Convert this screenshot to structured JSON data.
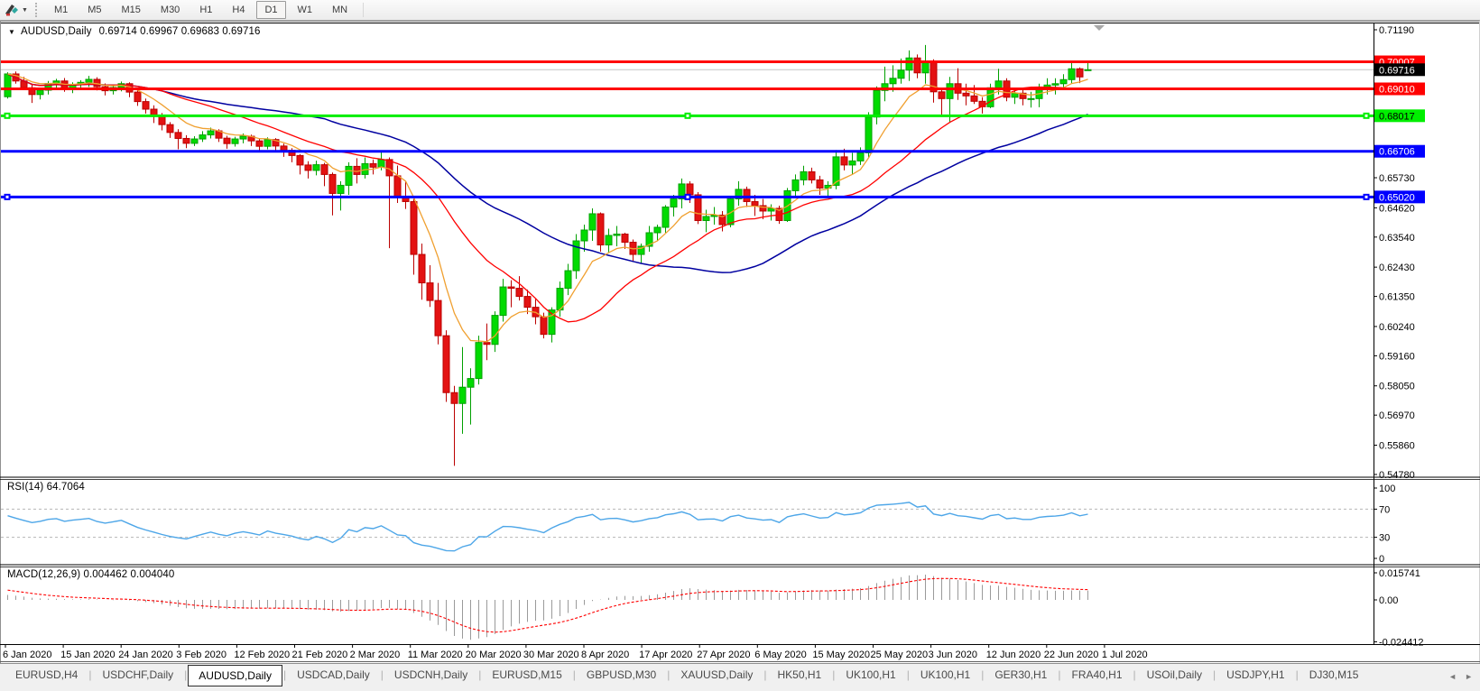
{
  "toolbar": {
    "chart_style_icon": "chart-style-icon",
    "timeframes": [
      "M1",
      "M5",
      "M15",
      "M30",
      "H1",
      "H4",
      "D1",
      "W1",
      "MN"
    ],
    "active_timeframe": "D1"
  },
  "chart_header": {
    "dropdown_glyph": "▼",
    "title": "AUDUSD,Daily",
    "ohlc": "0.69714 0.69967 0.69683 0.69716"
  },
  "price_axis": {
    "ticks": [
      "0.71190",
      "0.67920",
      "0.65730",
      "0.64620",
      "0.63540",
      "0.62430",
      "0.61350",
      "0.60240",
      "0.59160",
      "0.58050",
      "0.56970",
      "0.55860",
      "0.54780"
    ],
    "badges": [
      {
        "text": "0.70007",
        "bg": "#ff0000",
        "fg": "#ffffff"
      },
      {
        "text": "0.69716",
        "bg": "#000000",
        "fg": "#ffffff"
      },
      {
        "text": "0.69010",
        "bg": "#ff0000",
        "fg": "#ffffff"
      },
      {
        "text": "0.68017",
        "bg": "#00ee00",
        "fg": "#000000"
      },
      {
        "text": "0.66706",
        "bg": "#0000ff",
        "fg": "#ffffff"
      },
      {
        "text": "0.65020",
        "bg": "#0000ff",
        "fg": "#ffffff"
      }
    ]
  },
  "rsi": {
    "label": "RSI(14) 64.7064",
    "period": 14,
    "value": 64.7064,
    "axis_labels": [
      "100",
      "70",
      "30",
      "0"
    ],
    "overbought": 70,
    "oversold": 30,
    "line_color": "#4da6e8"
  },
  "macd": {
    "label": "MACD(12,26,9) 0.004462 0.004040",
    "params": "12,26,9",
    "macd_value": 0.004462,
    "signal_value": 0.00404,
    "axis_labels": [
      "0.015741",
      "0.00",
      "-0.024412"
    ],
    "histogram_color": "#9a9a9a",
    "signal_color": "#ff0000"
  },
  "date_axis": {
    "labels": [
      "6 Jan 2020",
      "15 Jan 2020",
      "24 Jan 2020",
      "3 Feb 2020",
      "12 Feb 2020",
      "21 Feb 2020",
      "2 Mar 2020",
      "11 Mar 2020",
      "20 Mar 2020",
      "30 Mar 2020",
      "8 Apr 2020",
      "17 Apr 2020",
      "27 Apr 2020",
      "6 May 2020",
      "15 May 2020",
      "25 May 2020",
      "3 Jun 2020",
      "12 Jun 2020",
      "22 Jun 2020",
      "1 Jul 2020"
    ]
  },
  "tabbar": {
    "items": [
      "EURUSD,H4",
      "USDCHF,Daily",
      "AUDUSD,Daily",
      "USDCAD,Daily",
      "USDCNH,Daily",
      "EURUSD,M15",
      "GBPUSD,M30",
      "XAUUSD,Daily",
      "HK50,H1",
      "UK100,H1",
      "UK100,H1",
      "GER30,H1",
      "FRA40,H1",
      "USOil,Daily",
      "USDJPY,H1",
      "DJ30,M15"
    ],
    "active": "AUDUSD,Daily",
    "left_arrow": "◄",
    "right_arrow": "►"
  },
  "colors": {
    "bull_fill": "#00db00",
    "bull_stroke": "#00a000",
    "bear_fill": "#e31212",
    "bear_stroke": "#bb0000",
    "ma_fast": "#f0a030",
    "ma_medium": "#ff0000",
    "ma_slow": "#0000a0",
    "current_price_line": "#c4c4c4",
    "shift_marker": "#a8a8a8"
  },
  "chart_data": {
    "type": "candlestick",
    "title": "AUDUSD,Daily",
    "open": 0.69714,
    "high": 0.69967,
    "low": 0.69683,
    "close": 0.69716,
    "y_ticks": [
      0.7119,
      0.7011,
      0.69,
      0.6792,
      0.6681,
      0.6573,
      0.6462,
      0.6354,
      0.6243,
      0.6135,
      0.6024,
      0.5916,
      0.5805,
      0.5697,
      0.5586,
      0.5478
    ],
    "horizontal_lines": [
      {
        "price": 0.70007,
        "color": "#ff0000",
        "width": 3,
        "selected": false
      },
      {
        "price": 0.6901,
        "color": "#ff0000",
        "width": 3,
        "selected": false
      },
      {
        "price": 0.68017,
        "color": "#00ee00",
        "width": 3,
        "selected": true
      },
      {
        "price": 0.66706,
        "color": "#0000ff",
        "width": 3,
        "selected": false
      },
      {
        "price": 0.6502,
        "color": "#0000ff",
        "width": 3,
        "selected": true
      }
    ],
    "current_price": 0.69716,
    "overlays": [
      {
        "name": "ma-fast-orange",
        "color": "#f0a030"
      },
      {
        "name": "ma-medium-red",
        "color": "#ff0000"
      },
      {
        "name": "ma-slow-navy",
        "color": "#0000a0"
      }
    ],
    "subcharts": [
      {
        "name": "RSI",
        "period": 14,
        "last": 64.7064,
        "range": [
          0,
          100
        ],
        "levels": [
          70,
          30
        ]
      },
      {
        "name": "MACD",
        "params": [
          12,
          26,
          9
        ],
        "last": [
          0.004462,
          0.00404
        ],
        "axis": [
          0.015741,
          0.0,
          -0.024412
        ]
      }
    ],
    "candles": [
      [
        0.6872,
        0.6962,
        0.6865,
        0.6956
      ],
      [
        0.6956,
        0.6965,
        0.692,
        0.693
      ],
      [
        0.693,
        0.6945,
        0.6898,
        0.6905
      ],
      [
        0.6905,
        0.6917,
        0.6849,
        0.688
      ],
      [
        0.688,
        0.6905,
        0.6862,
        0.6896
      ],
      [
        0.6896,
        0.693,
        0.688,
        0.6921
      ],
      [
        0.6921,
        0.6938,
        0.6902,
        0.693
      ],
      [
        0.693,
        0.6941,
        0.689,
        0.6903
      ],
      [
        0.6903,
        0.6925,
        0.6885,
        0.6916
      ],
      [
        0.6916,
        0.6933,
        0.6896,
        0.6925
      ],
      [
        0.6925,
        0.6949,
        0.6908,
        0.6936
      ],
      [
        0.6936,
        0.6944,
        0.6895,
        0.6909
      ],
      [
        0.6909,
        0.6921,
        0.6877,
        0.6894
      ],
      [
        0.6894,
        0.6915,
        0.688,
        0.6906
      ],
      [
        0.6906,
        0.6928,
        0.6892,
        0.692
      ],
      [
        0.692,
        0.6925,
        0.687,
        0.6889
      ],
      [
        0.6889,
        0.6898,
        0.6838,
        0.6854
      ],
      [
        0.6854,
        0.6865,
        0.681,
        0.6826
      ],
      [
        0.6826,
        0.684,
        0.6775,
        0.68
      ],
      [
        0.68,
        0.6812,
        0.6748,
        0.6769
      ],
      [
        0.6769,
        0.6778,
        0.672,
        0.674
      ],
      [
        0.674,
        0.6752,
        0.6678,
        0.6718
      ],
      [
        0.6718,
        0.673,
        0.6682,
        0.67
      ],
      [
        0.67,
        0.6726,
        0.669,
        0.6716
      ],
      [
        0.6716,
        0.6745,
        0.6705,
        0.6731
      ],
      [
        0.6731,
        0.6758,
        0.6718,
        0.6746
      ],
      [
        0.6746,
        0.6752,
        0.6705,
        0.6719
      ],
      [
        0.6719,
        0.6728,
        0.668,
        0.6699
      ],
      [
        0.6699,
        0.6724,
        0.6688,
        0.6716
      ],
      [
        0.6716,
        0.6736,
        0.67,
        0.6726
      ],
      [
        0.6726,
        0.6732,
        0.669,
        0.6709
      ],
      [
        0.6709,
        0.6718,
        0.667,
        0.6689
      ],
      [
        0.6689,
        0.6722,
        0.6678,
        0.6714
      ],
      [
        0.6714,
        0.6719,
        0.6672,
        0.669
      ],
      [
        0.669,
        0.6699,
        0.665,
        0.6674
      ],
      [
        0.6674,
        0.6682,
        0.663,
        0.6655
      ],
      [
        0.6655,
        0.666,
        0.6585,
        0.662
      ],
      [
        0.662,
        0.6634,
        0.657,
        0.66
      ],
      [
        0.66,
        0.6636,
        0.6582,
        0.6621
      ],
      [
        0.6621,
        0.6628,
        0.6542,
        0.6585
      ],
      [
        0.6585,
        0.6592,
        0.6434,
        0.6515
      ],
      [
        0.6515,
        0.656,
        0.6452,
        0.6545
      ],
      [
        0.6545,
        0.663,
        0.651,
        0.6615
      ],
      [
        0.6615,
        0.6645,
        0.6552,
        0.6585
      ],
      [
        0.6585,
        0.6648,
        0.657,
        0.6625
      ],
      [
        0.6625,
        0.664,
        0.6585,
        0.6612
      ],
      [
        0.6612,
        0.667,
        0.66,
        0.664
      ],
      [
        0.664,
        0.6648,
        0.6313,
        0.658
      ],
      [
        0.658,
        0.6618,
        0.648,
        0.65
      ],
      [
        0.65,
        0.6558,
        0.6458,
        0.6485
      ],
      [
        0.6485,
        0.6495,
        0.6215,
        0.629
      ],
      [
        0.629,
        0.633,
        0.6123,
        0.6185
      ],
      [
        0.6185,
        0.625,
        0.6096,
        0.612
      ],
      [
        0.612,
        0.6185,
        0.5958,
        0.599
      ],
      [
        0.599,
        0.601,
        0.5746,
        0.578
      ],
      [
        0.578,
        0.5805,
        0.551,
        0.574
      ],
      [
        0.574,
        0.5948,
        0.5628,
        0.58
      ],
      [
        0.58,
        0.587,
        0.5662,
        0.5832
      ],
      [
        0.5832,
        0.599,
        0.581,
        0.5965
      ],
      [
        0.5965,
        0.6035,
        0.59,
        0.5958
      ],
      [
        0.5958,
        0.608,
        0.593,
        0.6065
      ],
      [
        0.6065,
        0.62,
        0.6042,
        0.617
      ],
      [
        0.617,
        0.6195,
        0.6095,
        0.6165
      ],
      [
        0.6165,
        0.621,
        0.612,
        0.6135
      ],
      [
        0.6135,
        0.616,
        0.607,
        0.6095
      ],
      [
        0.6095,
        0.6125,
        0.6032,
        0.606
      ],
      [
        0.606,
        0.6075,
        0.598,
        0.5995
      ],
      [
        0.5995,
        0.6095,
        0.5965,
        0.6085
      ],
      [
        0.6085,
        0.619,
        0.606,
        0.6165
      ],
      [
        0.6165,
        0.6255,
        0.614,
        0.623
      ],
      [
        0.623,
        0.6365,
        0.62,
        0.634
      ],
      [
        0.634,
        0.64,
        0.63,
        0.638
      ],
      [
        0.638,
        0.646,
        0.634,
        0.644
      ],
      [
        0.644,
        0.6445,
        0.63,
        0.6325
      ],
      [
        0.6325,
        0.6385,
        0.6295,
        0.636
      ],
      [
        0.636,
        0.6395,
        0.632,
        0.6365
      ],
      [
        0.6365,
        0.637,
        0.631,
        0.6335
      ],
      [
        0.6335,
        0.6345,
        0.6265,
        0.629
      ],
      [
        0.629,
        0.633,
        0.6255,
        0.632
      ],
      [
        0.632,
        0.6395,
        0.63,
        0.637
      ],
      [
        0.637,
        0.64,
        0.634,
        0.639
      ],
      [
        0.639,
        0.6472,
        0.637,
        0.6465
      ],
      [
        0.6465,
        0.651,
        0.643,
        0.6495
      ],
      [
        0.6495,
        0.657,
        0.646,
        0.655
      ],
      [
        0.655,
        0.656,
        0.648,
        0.651
      ],
      [
        0.651,
        0.652,
        0.6402,
        0.6415
      ],
      [
        0.6415,
        0.6455,
        0.6372,
        0.643
      ],
      [
        0.643,
        0.6465,
        0.64,
        0.6435
      ],
      [
        0.6435,
        0.645,
        0.6375,
        0.64
      ],
      [
        0.64,
        0.6505,
        0.639,
        0.6495
      ],
      [
        0.6495,
        0.656,
        0.647,
        0.653
      ],
      [
        0.653,
        0.654,
        0.6465,
        0.6485
      ],
      [
        0.6485,
        0.651,
        0.6432,
        0.647
      ],
      [
        0.647,
        0.6495,
        0.642,
        0.645
      ],
      [
        0.645,
        0.6475,
        0.6415,
        0.646
      ],
      [
        0.646,
        0.647,
        0.6403,
        0.6415
      ],
      [
        0.6415,
        0.6535,
        0.641,
        0.6525
      ],
      [
        0.6525,
        0.6585,
        0.6505,
        0.6565
      ],
      [
        0.6565,
        0.6617,
        0.6545,
        0.6595
      ],
      [
        0.6595,
        0.661,
        0.6552,
        0.6565
      ],
      [
        0.6565,
        0.658,
        0.651,
        0.6535
      ],
      [
        0.6535,
        0.656,
        0.6505,
        0.6545
      ],
      [
        0.6545,
        0.6675,
        0.653,
        0.665
      ],
      [
        0.665,
        0.668,
        0.66,
        0.662
      ],
      [
        0.662,
        0.6665,
        0.6585,
        0.6635
      ],
      [
        0.6635,
        0.6685,
        0.662,
        0.6665
      ],
      [
        0.6665,
        0.6815,
        0.6645,
        0.6797
      ],
      [
        0.6797,
        0.691,
        0.677,
        0.6895
      ],
      [
        0.6895,
        0.6983,
        0.6855,
        0.692
      ],
      [
        0.692,
        0.6988,
        0.689,
        0.694
      ],
      [
        0.694,
        0.7013,
        0.692,
        0.697
      ],
      [
        0.697,
        0.7043,
        0.693,
        0.7015
      ],
      [
        0.7015,
        0.7028,
        0.694,
        0.696
      ],
      [
        0.696,
        0.7063,
        0.692,
        0.7
      ],
      [
        0.7,
        0.701,
        0.685,
        0.689
      ],
      [
        0.689,
        0.6905,
        0.68,
        0.6865
      ],
      [
        0.6865,
        0.6945,
        0.6776,
        0.692
      ],
      [
        0.692,
        0.6977,
        0.686,
        0.6885
      ],
      [
        0.6885,
        0.692,
        0.684,
        0.6875
      ],
      [
        0.6875,
        0.6915,
        0.6845,
        0.6855
      ],
      [
        0.6855,
        0.687,
        0.681,
        0.6835
      ],
      [
        0.6835,
        0.692,
        0.683,
        0.6905
      ],
      [
        0.6905,
        0.6975,
        0.688,
        0.693
      ],
      [
        0.693,
        0.694,
        0.6855,
        0.687
      ],
      [
        0.687,
        0.6905,
        0.6845,
        0.6885
      ],
      [
        0.6885,
        0.69,
        0.684,
        0.6865
      ],
      [
        0.6865,
        0.689,
        0.6832,
        0.6865
      ],
      [
        0.6865,
        0.692,
        0.6833,
        0.69
      ],
      [
        0.69,
        0.694,
        0.688,
        0.6915
      ],
      [
        0.6915,
        0.694,
        0.688,
        0.692
      ],
      [
        0.692,
        0.6955,
        0.69,
        0.6935
      ],
      [
        0.6935,
        0.6998,
        0.692,
        0.6975
      ],
      [
        0.6975,
        0.698,
        0.6922,
        0.6945
      ],
      [
        0.69714,
        0.69967,
        0.69683,
        0.69716
      ]
    ]
  }
}
